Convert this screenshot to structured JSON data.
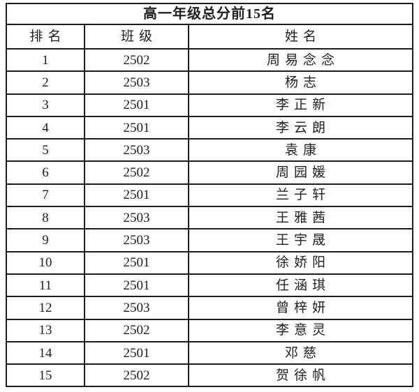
{
  "table": {
    "title": "高一年级总分前15名",
    "columns": {
      "rank": "排名",
      "class": "班级",
      "name": "姓名"
    },
    "rows": [
      {
        "rank": "1",
        "class": "2502",
        "name": "周易念念"
      },
      {
        "rank": "2",
        "class": "2503",
        "name": "杨志"
      },
      {
        "rank": "3",
        "class": "2501",
        "name": "李正新"
      },
      {
        "rank": "4",
        "class": "2501",
        "name": "李云朗"
      },
      {
        "rank": "5",
        "class": "2503",
        "name": "袁康"
      },
      {
        "rank": "6",
        "class": "2502",
        "name": "周园媛"
      },
      {
        "rank": "7",
        "class": "2501",
        "name": "兰子轩"
      },
      {
        "rank": "8",
        "class": "2503",
        "name": "王雅茜"
      },
      {
        "rank": "9",
        "class": "2503",
        "name": "王宇晟"
      },
      {
        "rank": "10",
        "class": "2501",
        "name": "徐娇阳"
      },
      {
        "rank": "11",
        "class": "2501",
        "name": "任涵琪"
      },
      {
        "rank": "12",
        "class": "2503",
        "name": "曾梓妍"
      },
      {
        "rank": "13",
        "class": "2502",
        "name": "李意灵"
      },
      {
        "rank": "14",
        "class": "2501",
        "name": "邓慈"
      },
      {
        "rank": "15",
        "class": "2502",
        "name": "贺徐帆"
      }
    ],
    "border_color": "#1c1c1c",
    "background_color": "#ffffff"
  }
}
